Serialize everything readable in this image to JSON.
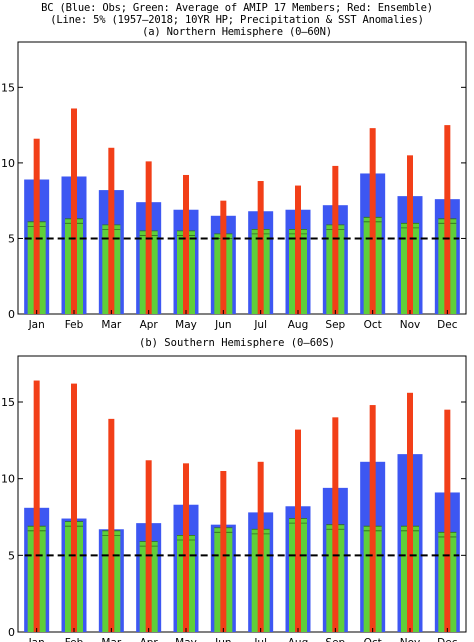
{
  "header": {
    "line1": "BC (Blue: Obs; Green: Average of AMIP 17 Members; Red: Ensemble)",
    "line2": "(Line: 5% (1957–2018; 10YR HP; Precipitation & SST Anomalies)",
    "line3": "(a) Northern Hemisphere (0–60N)"
  },
  "colors": {
    "obs": "#3d57f2",
    "amip_mean": "#5fcf3a",
    "ensemble": "#f23f18",
    "threshold": "#000000"
  },
  "chart_data": [
    {
      "type": "bar",
      "title": "(a) Northern Hemisphere (0–60N)",
      "xlabel": "",
      "ylabel": "",
      "ylim": [
        0,
        18
      ],
      "yticks": [
        0,
        5,
        10,
        15
      ],
      "categories": [
        "Jan",
        "Feb",
        "Mar",
        "Apr",
        "May",
        "Jun",
        "Jul",
        "Aug",
        "Sep",
        "Oct",
        "Nov",
        "Dec"
      ],
      "series": [
        {
          "name": "Obs",
          "color": "blue",
          "values": [
            8.9,
            9.1,
            8.2,
            7.4,
            6.9,
            6.5,
            6.8,
            6.9,
            7.2,
            9.3,
            7.8,
            7.6
          ]
        },
        {
          "name": "Average of AMIP 17 Members",
          "color": "green",
          "values": [
            6.1,
            6.3,
            5.9,
            5.5,
            5.5,
            5.3,
            5.6,
            5.6,
            5.9,
            6.4,
            6.0,
            6.3
          ]
        },
        {
          "name": "Ensemble",
          "color": "red",
          "values": [
            11.6,
            13.6,
            11.0,
            10.1,
            9.2,
            7.5,
            8.8,
            8.5,
            9.8,
            12.3,
            10.5,
            12.5
          ]
        }
      ],
      "threshold": {
        "label": "5%",
        "value": 5.0
      },
      "legend": "none",
      "grid": false
    },
    {
      "type": "bar",
      "title": "(b) Southern Hemisphere (0–60S)",
      "xlabel": "",
      "ylabel": "",
      "ylim": [
        0,
        18
      ],
      "yticks": [
        0,
        5,
        10,
        15
      ],
      "categories": [
        "Jan",
        "Feb",
        "Mar",
        "Apr",
        "May",
        "Jun",
        "Jul",
        "Aug",
        "Sep",
        "Oct",
        "Nov",
        "Dec"
      ],
      "series": [
        {
          "name": "Obs",
          "color": "blue",
          "values": [
            8.1,
            7.4,
            6.7,
            7.1,
            8.3,
            7.0,
            7.8,
            8.2,
            9.4,
            11.1,
            11.6,
            9.1
          ]
        },
        {
          "name": "Average of AMIP 17 Members",
          "color": "green",
          "values": [
            6.9,
            7.2,
            6.6,
            5.9,
            6.3,
            6.8,
            6.7,
            7.4,
            7.0,
            6.9,
            6.9,
            6.5
          ]
        },
        {
          "name": "Ensemble",
          "color": "red",
          "values": [
            16.4,
            16.2,
            13.9,
            11.2,
            11.0,
            10.5,
            11.1,
            13.2,
            14.0,
            14.8,
            15.6,
            14.5
          ]
        }
      ],
      "threshold": {
        "label": "5%",
        "value": 5.0
      },
      "legend": "none",
      "grid": false
    }
  ]
}
